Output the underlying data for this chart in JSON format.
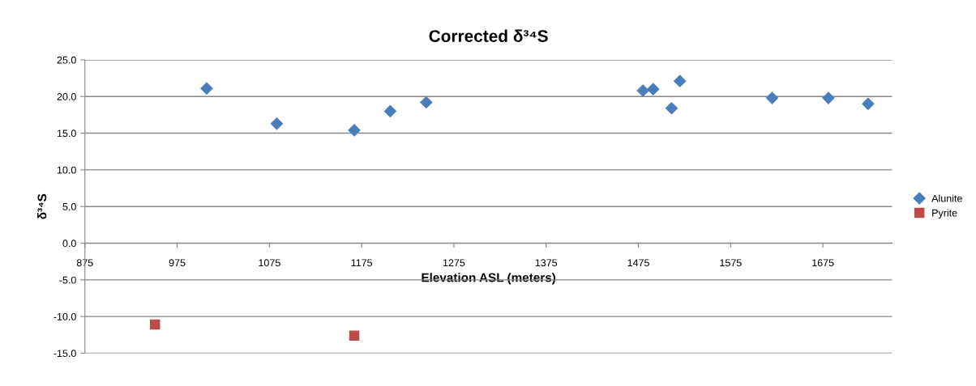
{
  "chart_data": {
    "type": "scatter",
    "title": "Corrected δ³⁴S",
    "xlabel": "Elevation ASL (meters)",
    "ylabel": "δ³⁴S",
    "xlim": [
      875,
      1750
    ],
    "xticks": [
      875,
      975,
      1075,
      1175,
      1275,
      1375,
      1475,
      1575,
      1675
    ],
    "ylim": [
      -15,
      25
    ],
    "yticks": [
      {
        "value": -15,
        "label": "-15.0"
      },
      {
        "value": -10,
        "label": "-10.0"
      },
      {
        "value": -5,
        "label": "-5.0"
      },
      {
        "value": 0,
        "label": "0.0"
      },
      {
        "value": 5,
        "label": "5.0"
      },
      {
        "value": 10,
        "label": "10.0"
      },
      {
        "value": 15,
        "label": "15.0"
      },
      {
        "value": 20,
        "label": "20.0"
      },
      {
        "value": 25,
        "label": "25.0"
      }
    ],
    "grid": "y",
    "legend": "right",
    "series": [
      {
        "name": "Alunite",
        "color": "#4a7ebb",
        "marker": "diamond",
        "x": [
          1007,
          1083,
          1167,
          1206,
          1245,
          1480,
          1491,
          1511,
          1520,
          1620,
          1681,
          1724
        ],
        "values": [
          21.1,
          16.3,
          15.4,
          18.0,
          19.2,
          20.8,
          21.0,
          18.4,
          22.1,
          19.8,
          19.8,
          19.0
        ]
      },
      {
        "name": "Pyrite",
        "color": "#be4b48",
        "marker": "square",
        "x": [
          951,
          1167
        ],
        "values": [
          -11.1,
          -12.6
        ]
      }
    ]
  }
}
